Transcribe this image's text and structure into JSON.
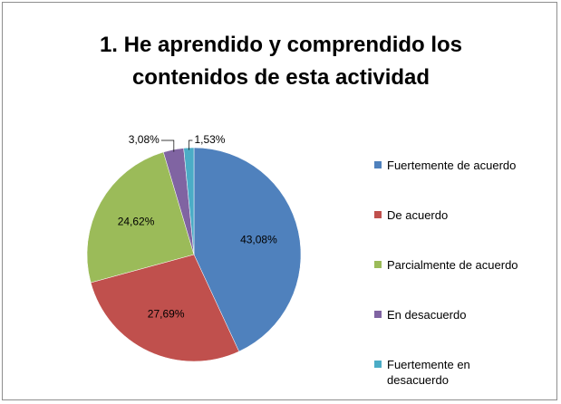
{
  "chart_data": {
    "type": "pie",
    "title": "1. He aprendido y comprendido los contenidos de esta actividad",
    "categories": [
      "Fuertemente de acuerdo",
      "De acuerdo",
      "Parcialmente de acuerdo",
      "En desacuerdo",
      "Fuertemente en desacuerdo"
    ],
    "values": [
      43.08,
      27.69,
      24.62,
      3.08,
      1.53
    ],
    "value_labels": [
      "43,08%",
      "27,69%",
      "24,62%",
      "3,08%",
      "1,53%"
    ],
    "colors": [
      "#4f81bd",
      "#c0504d",
      "#9bbb59",
      "#8064a2",
      "#4bacc6"
    ],
    "legend": "right"
  }
}
